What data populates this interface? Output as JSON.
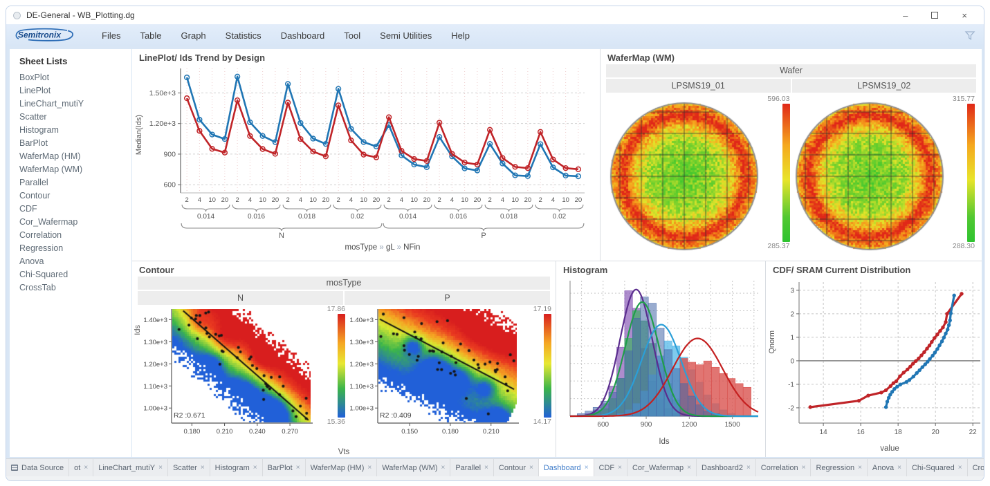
{
  "window": {
    "title": "DE-General - WB_Plotting.dg",
    "controls": [
      {
        "name": "minimize",
        "glyph": "–"
      },
      {
        "name": "maximize",
        "glyph": ""
      },
      {
        "name": "close",
        "glyph": "×"
      }
    ]
  },
  "menu": {
    "logo": "Semitronix",
    "items": [
      "Files",
      "Table",
      "Graph",
      "Statistics",
      "Dashboard",
      "Tool",
      "Semi Utilities",
      "Help"
    ],
    "filter_icon": "funnel-icon"
  },
  "sidebar": {
    "header": "Sheet Lists",
    "items": [
      "BoxPlot",
      "LinePlot",
      "LineChart_mutiY",
      "Scatter",
      "Histogram",
      "BarPlot",
      "WaferMap (HM)",
      "WaferMap (WM)",
      "Parallel",
      "Contour",
      "CDF",
      "Cor_Wafermap",
      "Correlation",
      "Regression",
      "Anova",
      "Chi-Squared",
      "CrossTab"
    ],
    "selected": null
  },
  "tabbar": {
    "active": "Dashboard",
    "close_glyph": "×",
    "nav": [
      "‹",
      "›"
    ],
    "tabs": [
      {
        "label": "Data Source",
        "icon": "table-icon",
        "close": false
      },
      {
        "label": "ot",
        "close": true
      },
      {
        "label": "LineChart_mutiY",
        "close": true
      },
      {
        "label": "Scatter",
        "close": true
      },
      {
        "label": "Histogram",
        "close": true
      },
      {
        "label": "BarPlot",
        "close": true
      },
      {
        "label": "WaferMap (HM)",
        "close": true
      },
      {
        "label": "WaferMap (WM)",
        "close": true
      },
      {
        "label": "Parallel",
        "close": true
      },
      {
        "label": "Contour",
        "close": true
      },
      {
        "label": "Dashboard",
        "close": true,
        "active": true
      },
      {
        "label": "CDF",
        "close": true
      },
      {
        "label": "Cor_Wafermap",
        "close": true
      },
      {
        "label": "Dashboard2",
        "close": true
      },
      {
        "label": "Correlation",
        "close": true
      },
      {
        "label": "Regression",
        "close": true
      },
      {
        "label": "Anova",
        "close": true
      },
      {
        "label": "Chi-Squared",
        "close": true
      },
      {
        "label": "CrossTab",
        "close": true
      }
    ]
  },
  "chart_data": [
    {
      "type": "line",
      "title": "LinePlot/ Ids Trend by Design",
      "ylabel": "Median(Ids)",
      "ylim": [
        520,
        1740
      ],
      "yticks": [
        {
          "v": 600,
          "label": "600"
        },
        {
          "v": 900,
          "label": "900"
        },
        {
          "v": 1200,
          "label": "1.20e+3"
        },
        {
          "v": 1500,
          "label": "1.50e+3"
        }
      ],
      "x_nested": {
        "nfin": [
          "2",
          "4",
          "10",
          "20"
        ],
        "gl": [
          "0.014",
          "0.016",
          "0.018",
          "0.02"
        ],
        "mostype": [
          "N",
          "P"
        ]
      },
      "legend_parts": [
        "mosType",
        "gL",
        "NFin"
      ],
      "series": [
        {
          "name": "series-blue",
          "color": "#2076b4",
          "values": [
            1652,
            1238,
            1092,
            1048,
            1660,
            1212,
            1078,
            1018,
            1588,
            1205,
            1052,
            1000,
            1540,
            1148,
            1018,
            975,
            1185,
            888,
            798,
            772,
            1068,
            878,
            760,
            740,
            1000,
            808,
            692,
            685,
            998,
            770,
            690,
            683
          ]
        },
        {
          "name": "series-red",
          "color": "#c02428",
          "values": [
            1448,
            1128,
            952,
            915,
            1428,
            1078,
            950,
            903,
            1405,
            1048,
            925,
            878,
            1378,
            1035,
            895,
            868,
            1262,
            932,
            852,
            833,
            1208,
            903,
            818,
            798,
            1138,
            862,
            775,
            763,
            1118,
            848,
            763,
            752
          ]
        }
      ]
    },
    {
      "type": "heatmap",
      "title": "WaferMap (WM)",
      "group_header": "Wafer",
      "pattern": "green center with yellow-orange-red ring toward wafer edge, die grid overlay",
      "wafers": [
        {
          "name": "LPSMS19_01",
          "scale_max": "596.03",
          "scale_min": "285.37"
        },
        {
          "name": "LPSMS19_02",
          "scale_max": "315.77",
          "scale_min": "288.30"
        }
      ]
    },
    {
      "type": "heatmap",
      "title": "Contour",
      "group_header": "mosType",
      "xlabel": "Vts",
      "ylabel": "Ids",
      "ylim": [
        935,
        1448
      ],
      "yticks": [
        {
          "v": 1400,
          "label": "1.40e+3"
        },
        {
          "v": 1300,
          "label": "1.30e+3"
        },
        {
          "v": 1200,
          "label": "1.20e+3"
        },
        {
          "v": 1100,
          "label": "1.10e+3"
        },
        {
          "v": 1000,
          "label": "1.00e+3"
        }
      ],
      "panels": [
        {
          "name": "N",
          "xlim": [
            0.162,
            0.289
          ],
          "xticks": [
            "0.180",
            "0.210",
            "0.240",
            "0.270"
          ],
          "r2": "R2 :0.671",
          "scale_max": "17.86",
          "scale_min": "15.36",
          "trend_line": [
            [
              0.172,
              1440
            ],
            [
              0.287,
              945
            ]
          ]
        },
        {
          "name": "P",
          "xlim": [
            0.127,
            0.229
          ],
          "xticks": [
            "0.150",
            "0.180",
            "0.210"
          ],
          "r2": "R2 :0.409",
          "scale_max": "17.19",
          "scale_min": "14.17",
          "trend_line": [
            [
              0.128,
              1402
            ],
            [
              0.227,
              1085
            ]
          ]
        }
      ]
    },
    {
      "type": "histogram",
      "title": "Histogram",
      "xlabel": "Ids",
      "xlim": [
        370,
        1680
      ],
      "xticks": [
        600,
        900,
        1200,
        1500
      ],
      "bin_width": 55,
      "ylim": [
        0,
        108
      ],
      "series": [
        {
          "name": "all",
          "color": "#4668a8",
          "opacity": 0.55,
          "start": 420,
          "heights": [
            2,
            4,
            7,
            12,
            19,
            30,
            52,
            78,
            95,
            90,
            70,
            53,
            38,
            26,
            16,
            9,
            4,
            2
          ]
        },
        {
          "name": "purple",
          "color": "#8a5bb8",
          "opacity": 0.7,
          "start": 420,
          "heights": [
            1,
            2,
            5,
            10,
            24,
            55,
            100,
            86,
            54,
            28,
            13,
            6,
            2,
            1
          ]
        },
        {
          "name": "green",
          "color": "#3fae62",
          "opacity": 0.7,
          "start": 420,
          "heights": [
            0,
            1,
            3,
            6,
            14,
            30,
            62,
            84,
            76,
            58,
            42,
            26,
            13,
            6,
            2,
            1
          ]
        },
        {
          "name": "cyan",
          "color": "#54b8e8",
          "opacity": 0.75,
          "start": 420,
          "heights": [
            0,
            0,
            0,
            0,
            0,
            2,
            5,
            10,
            20,
            33,
            48,
            60,
            56,
            47,
            37,
            27,
            17,
            10,
            5,
            2
          ]
        },
        {
          "name": "red",
          "color": "#d9534f",
          "opacity": 0.8,
          "start": 1135,
          "heights": [
            46,
            43,
            41,
            44,
            39,
            34,
            30,
            26,
            23
          ]
        }
      ],
      "curves": [
        {
          "color": "#5b2d8e",
          "mu": 830,
          "sigma": 112,
          "amp": 101
        },
        {
          "color": "#1f9e4a",
          "mu": 872,
          "sigma": 118,
          "amp": 91
        },
        {
          "color": "#2b9fd8",
          "mu": 1005,
          "sigma": 138,
          "amp": 73
        },
        {
          "color": "#c42020",
          "mu": 1258,
          "sigma": 175,
          "amp": 62
        }
      ]
    },
    {
      "type": "line",
      "title": "CDF/ SRAM Current Distribution",
      "xlabel": "value",
      "ylabel": "Qnorm",
      "xlim": [
        12.7,
        22.4
      ],
      "ylim": [
        -2.65,
        3.35
      ],
      "xticks": [
        14,
        16,
        18,
        20,
        22
      ],
      "yticks": [
        -2,
        -1,
        0,
        1,
        2,
        3
      ],
      "series": [
        {
          "name": "series-red",
          "color": "#c02428",
          "points": [
            [
              13.3,
              -1.97
            ],
            [
              15.9,
              -1.7
            ],
            [
              16.4,
              -1.48
            ],
            [
              17.1,
              -1.35
            ],
            [
              17.35,
              -1.25
            ],
            [
              17.6,
              -1.07
            ],
            [
              17.75,
              -0.95
            ],
            [
              17.9,
              -0.87
            ],
            [
              18.1,
              -0.66
            ],
            [
              18.3,
              -0.5
            ],
            [
              18.5,
              -0.37
            ],
            [
              18.65,
              -0.25
            ],
            [
              18.8,
              -0.12
            ],
            [
              18.95,
              -0.01
            ],
            [
              19.1,
              0.1
            ],
            [
              19.25,
              0.23
            ],
            [
              19.4,
              0.37
            ],
            [
              19.55,
              0.52
            ],
            [
              19.68,
              0.65
            ],
            [
              19.8,
              0.8
            ],
            [
              19.95,
              0.97
            ],
            [
              20.1,
              1.12
            ],
            [
              20.25,
              1.27
            ],
            [
              20.4,
              1.42
            ],
            [
              20.55,
              1.65
            ],
            [
              20.62,
              2.0
            ],
            [
              21.4,
              2.85
            ]
          ]
        },
        {
          "name": "series-blue",
          "color": "#2076b4",
          "points": [
            [
              17.35,
              -1.97
            ],
            [
              17.42,
              -1.74
            ],
            [
              17.5,
              -1.57
            ],
            [
              17.58,
              -1.44
            ],
            [
              17.68,
              -1.32
            ],
            [
              17.8,
              -1.2
            ],
            [
              17.95,
              -1.1
            ],
            [
              18.12,
              -1.01
            ],
            [
              18.45,
              -0.9
            ],
            [
              18.6,
              -0.82
            ],
            [
              18.82,
              -0.67
            ],
            [
              19.0,
              -0.52
            ],
            [
              19.15,
              -0.4
            ],
            [
              19.3,
              -0.27
            ],
            [
              19.45,
              -0.15
            ],
            [
              19.58,
              -0.04
            ],
            [
              19.7,
              0.08
            ],
            [
              19.85,
              0.22
            ],
            [
              19.97,
              0.35
            ],
            [
              20.1,
              0.5
            ],
            [
              20.22,
              0.66
            ],
            [
              20.35,
              0.83
            ],
            [
              20.45,
              0.99
            ],
            [
              20.55,
              1.16
            ],
            [
              20.65,
              1.33
            ],
            [
              20.72,
              1.52
            ],
            [
              20.78,
              1.72
            ],
            [
              20.82,
              2.02
            ],
            [
              21.0,
              2.78
            ]
          ]
        }
      ]
    }
  ]
}
